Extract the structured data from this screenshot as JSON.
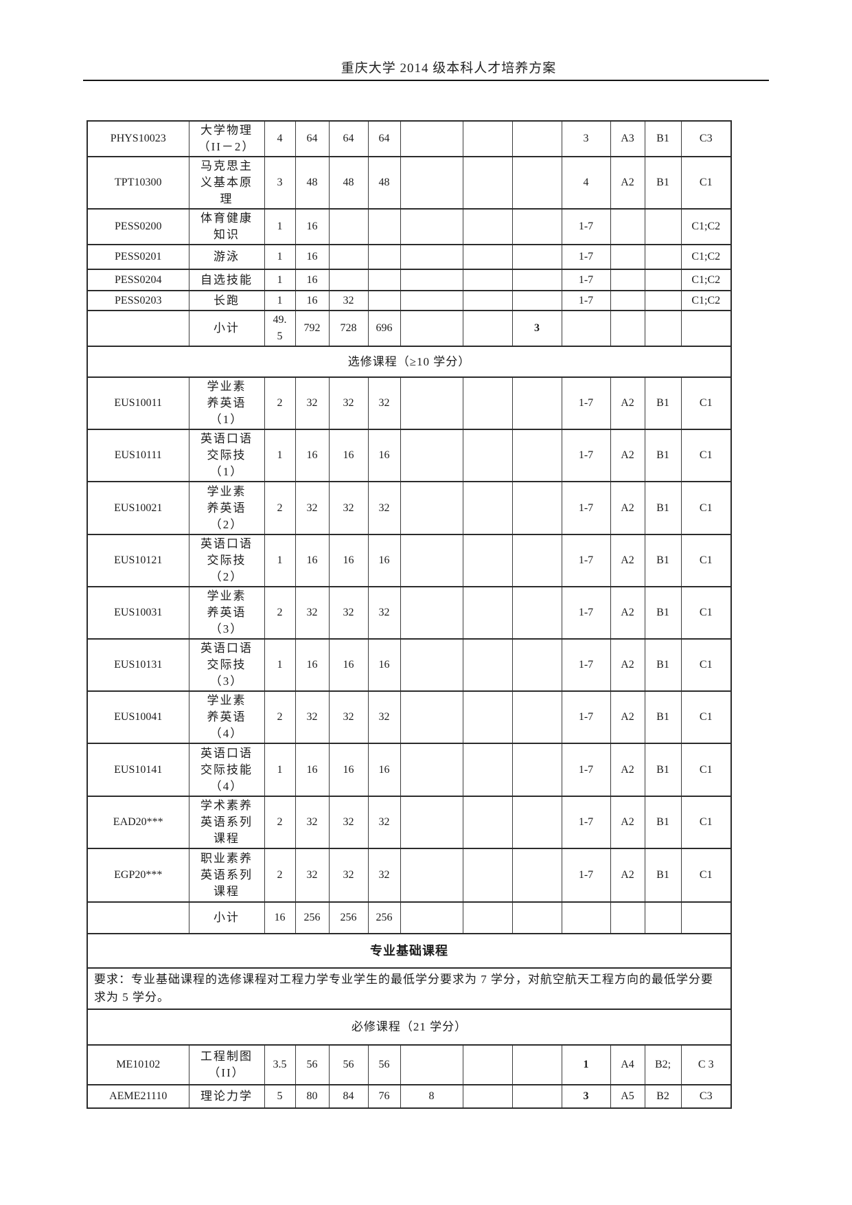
{
  "page": {
    "header_title": "重庆大学 2014 级本科人才培养方案"
  },
  "table": {
    "rows": [
      {
        "cells": [
          "PHYS10023",
          "大学物理\n（II－2）",
          "4",
          "64",
          "64",
          "64",
          "",
          "",
          "",
          "3",
          "A3",
          "B1",
          "C3"
        ]
      },
      {
        "cells": [
          "TPT10300",
          "马克思主\n义基本原\n理",
          "3",
          "48",
          "48",
          "48",
          "",
          "",
          "",
          "4",
          "A2",
          "B1",
          "C1"
        ]
      },
      {
        "cells": [
          "PESS0200",
          "体育健康\n知识",
          "1",
          "16",
          "",
          "",
          "",
          "",
          "",
          "1-7",
          "",
          "",
          "C1;C2"
        ]
      },
      {
        "cells": [
          "PESS0201",
          "游泳",
          "1",
          "16",
          "",
          "",
          "",
          "",
          "",
          "1-7",
          "",
          "",
          "C1;C2"
        ]
      },
      {
        "cells": [
          "PESS0204",
          "自选技能",
          "1",
          "16",
          "",
          "",
          "",
          "",
          "",
          "1-7",
          "",
          "",
          "C1;C2"
        ]
      },
      {
        "cells": [
          "PESS0203",
          "长跑",
          "1",
          "16",
          "32",
          "",
          "",
          "",
          "",
          "1-7",
          "",
          "",
          "C1;C2"
        ]
      },
      {
        "cells": [
          "",
          "小计",
          "49.\n5",
          "792",
          "728",
          "696",
          "",
          "",
          "3",
          "",
          "",
          "",
          ""
        ],
        "bold": [
          8
        ]
      },
      {
        "span": "选修课程（≥10 学分）"
      },
      {
        "cells": [
          "EUS10011",
          "学业素\n养英语\n（1）",
          "2",
          "32",
          "32",
          "32",
          "",
          "",
          "",
          "1-7",
          "A2",
          "B1",
          "C1"
        ]
      },
      {
        "cells": [
          "EUS10111",
          "英语口语\n交际技\n（1）",
          "1",
          "16",
          "16",
          "16",
          "",
          "",
          "",
          "1-7",
          "A2",
          "B1",
          "C1"
        ]
      },
      {
        "cells": [
          "EUS10021",
          "学业素\n养英语\n（2）",
          "2",
          "32",
          "32",
          "32",
          "",
          "",
          "",
          "1-7",
          "A2",
          "B1",
          "C1"
        ]
      },
      {
        "cells": [
          "EUS10121",
          "英语口语\n交际技\n（2）",
          "1",
          "16",
          "16",
          "16",
          "",
          "",
          "",
          "1-7",
          "A2",
          "B1",
          "C1"
        ]
      },
      {
        "cells": [
          "EUS10031",
          "学业素\n养英语\n（3）",
          "2",
          "32",
          "32",
          "32",
          "",
          "",
          "",
          "1-7",
          "A2",
          "B1",
          "C1"
        ]
      },
      {
        "cells": [
          "EUS10131",
          "英语口语\n交际技\n（3）",
          "1",
          "16",
          "16",
          "16",
          "",
          "",
          "",
          "1-7",
          "A2",
          "B1",
          "C1"
        ]
      },
      {
        "cells": [
          "EUS10041",
          "学业素\n养英语\n（4）",
          "2",
          "32",
          "32",
          "32",
          "",
          "",
          "",
          "1-7",
          "A2",
          "B1",
          "C1"
        ]
      },
      {
        "cells": [
          "EUS10141",
          "英语口语\n交际技能\n（4）",
          "1",
          "16",
          "16",
          "16",
          "",
          "",
          "",
          "1-7",
          "A2",
          "B1",
          "C1"
        ]
      },
      {
        "cells": [
          "EAD20***",
          "学术素养\n英语系列\n课程",
          "2",
          "32",
          "32",
          "32",
          "",
          "",
          "",
          "1-7",
          "A2",
          "B1",
          "C1"
        ]
      },
      {
        "cells": [
          "EGP20***",
          "职业素养\n英语系列\n课程",
          "2",
          "32",
          "32",
          "32",
          "",
          "",
          "",
          "1-7",
          "A2",
          "B1",
          "C1"
        ]
      },
      {
        "cells": [
          "",
          "小计",
          "16",
          "256",
          "256",
          "256",
          "",
          "",
          "",
          "",
          "",
          "",
          ""
        ]
      },
      {
        "span": "专业基础课程",
        "bold_span": true
      },
      {
        "span": "要求：专业基础课程的选修课程对工程力学专业学生的最低学分要求为 7 学分，对航空航天工程方向的最低学分要求为 5 学分。",
        "align": "left"
      },
      {
        "span": "必修课程（21 学分）"
      },
      {
        "cells": [
          "ME10102",
          "工程制图\n（II）",
          "3.5",
          "56",
          "56",
          "56",
          "",
          "",
          "",
          "1",
          "A4",
          "B2;",
          "C 3"
        ],
        "bold": [
          9
        ]
      },
      {
        "cells": [
          "AEME21110",
          "理论力学",
          "5",
          "80",
          "84",
          "76",
          "8",
          "",
          "",
          "3",
          "A5",
          "B2",
          "C3"
        ],
        "bold": [
          9
        ]
      }
    ]
  }
}
